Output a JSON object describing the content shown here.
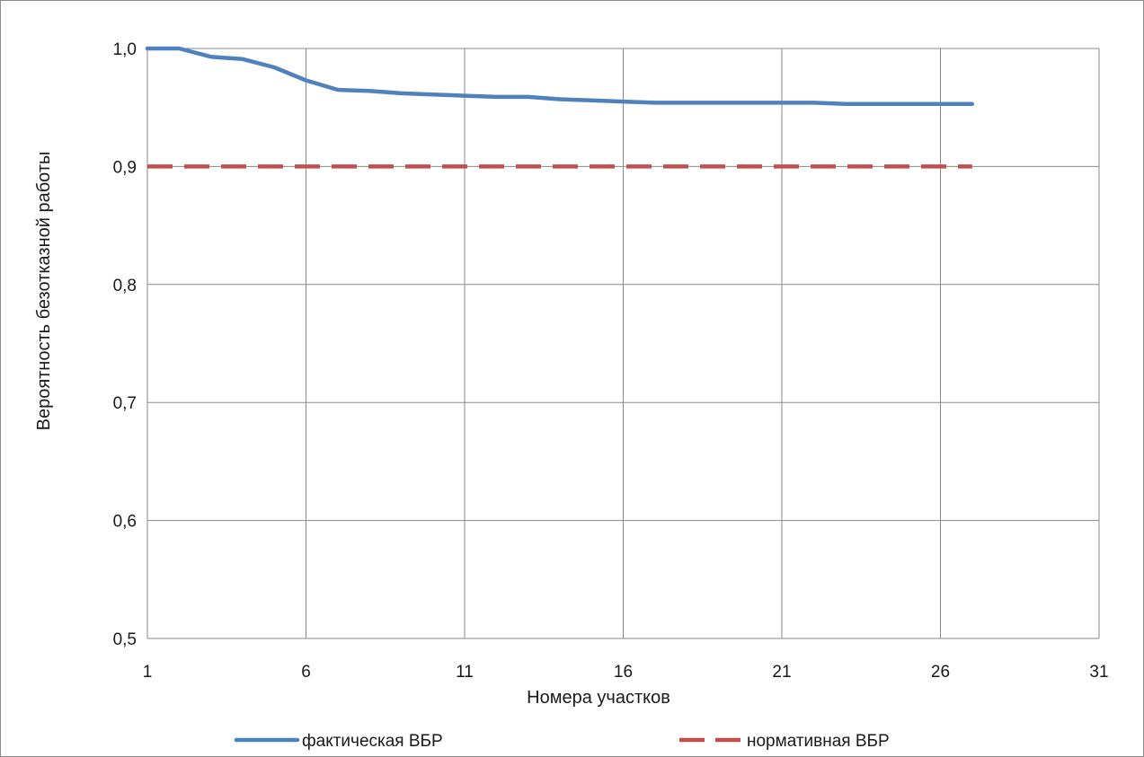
{
  "chart_data": {
    "type": "line",
    "title": "",
    "xlabel": "Номера участков",
    "ylabel": "Вероятность безотказной работы",
    "xlim": [
      1,
      31
    ],
    "ylim": [
      0.5,
      1.0
    ],
    "x_ticks": [
      1,
      6,
      11,
      16,
      21,
      26,
      31
    ],
    "y_ticks": [
      0.5,
      0.6,
      0.7,
      0.8,
      0.9,
      1.0
    ],
    "x_tick_labels": [
      "1",
      "6",
      "11",
      "16",
      "21",
      "26",
      "31"
    ],
    "y_tick_labels": [
      "0,5",
      "0,6",
      "0,7",
      "0,8",
      "0,9",
      "1,0"
    ],
    "grid": true,
    "legend_position": "bottom",
    "series": [
      {
        "name": "фактическая ВБР",
        "color": "#4f81bd",
        "style": "solid",
        "x": [
          1,
          2,
          3,
          4,
          5,
          6,
          7,
          8,
          9,
          10,
          11,
          12,
          13,
          14,
          15,
          16,
          17,
          18,
          19,
          20,
          21,
          22,
          23,
          24,
          25,
          26,
          27
        ],
        "values": [
          1.0,
          1.0,
          0.993,
          0.991,
          0.984,
          0.973,
          0.965,
          0.964,
          0.962,
          0.961,
          0.96,
          0.959,
          0.959,
          0.957,
          0.956,
          0.955,
          0.954,
          0.954,
          0.954,
          0.954,
          0.954,
          0.954,
          0.953,
          0.953,
          0.953,
          0.953,
          0.953
        ]
      },
      {
        "name": "нормативная ВБР",
        "color": "#c0504d",
        "style": "dashed",
        "x": [
          1,
          2,
          3,
          4,
          5,
          6,
          7,
          8,
          9,
          10,
          11,
          12,
          13,
          14,
          15,
          16,
          17,
          18,
          19,
          20,
          21,
          22,
          23,
          24,
          25,
          26,
          27
        ],
        "values": [
          0.9,
          0.9,
          0.9,
          0.9,
          0.9,
          0.9,
          0.9,
          0.9,
          0.9,
          0.9,
          0.9,
          0.9,
          0.9,
          0.9,
          0.9,
          0.9,
          0.9,
          0.9,
          0.9,
          0.9,
          0.9,
          0.9,
          0.9,
          0.9,
          0.9,
          0.9,
          0.9
        ]
      }
    ]
  }
}
